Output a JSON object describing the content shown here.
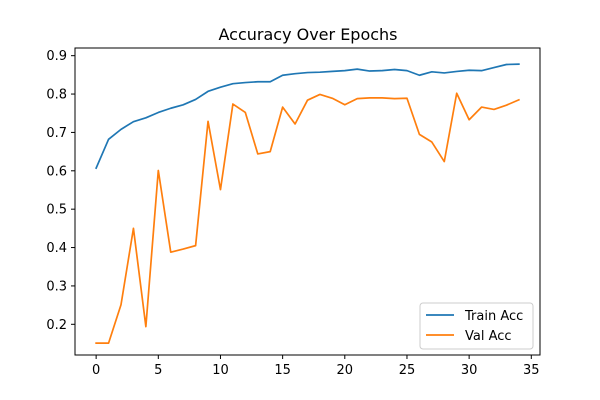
{
  "chart_data": {
    "type": "line",
    "title": "Accuracy Over Epochs",
    "xlabel": "",
    "ylabel": "",
    "xlim": [
      -1.7,
      35.7
    ],
    "ylim": [
      0.12,
      0.92
    ],
    "xticks": [
      0,
      5,
      10,
      15,
      20,
      25,
      30,
      35
    ],
    "yticks": [
      0.2,
      0.3,
      0.4,
      0.5,
      0.6,
      0.7,
      0.8,
      0.9
    ],
    "grid": false,
    "legend_position": "lower-right",
    "x": [
      0,
      1,
      2,
      3,
      4,
      5,
      6,
      7,
      8,
      9,
      10,
      11,
      12,
      13,
      14,
      15,
      16,
      17,
      18,
      19,
      20,
      21,
      22,
      23,
      24,
      25,
      26,
      27,
      28,
      29,
      30,
      31,
      32,
      33,
      34
    ],
    "series": [
      {
        "name": "Train Acc",
        "color": "#1f77b4",
        "values": [
          0.607,
          0.682,
          0.708,
          0.728,
          0.738,
          0.752,
          0.763,
          0.772,
          0.786,
          0.807,
          0.818,
          0.827,
          0.83,
          0.832,
          0.832,
          0.849,
          0.853,
          0.856,
          0.857,
          0.859,
          0.861,
          0.865,
          0.86,
          0.861,
          0.864,
          0.861,
          0.849,
          0.858,
          0.855,
          0.859,
          0.862,
          0.861,
          0.869,
          0.877,
          0.878
        ]
      },
      {
        "name": "Val Acc",
        "color": "#ff7f0e",
        "values": [
          0.151,
          0.151,
          0.251,
          0.45,
          0.194,
          0.601,
          0.388,
          0.396,
          0.405,
          0.729,
          0.551,
          0.774,
          0.752,
          0.644,
          0.65,
          0.766,
          0.722,
          0.784,
          0.799,
          0.789,
          0.772,
          0.788,
          0.79,
          0.79,
          0.788,
          0.789,
          0.695,
          0.675,
          0.624,
          0.802,
          0.733,
          0.766,
          0.76,
          0.771,
          0.785
        ]
      }
    ]
  }
}
